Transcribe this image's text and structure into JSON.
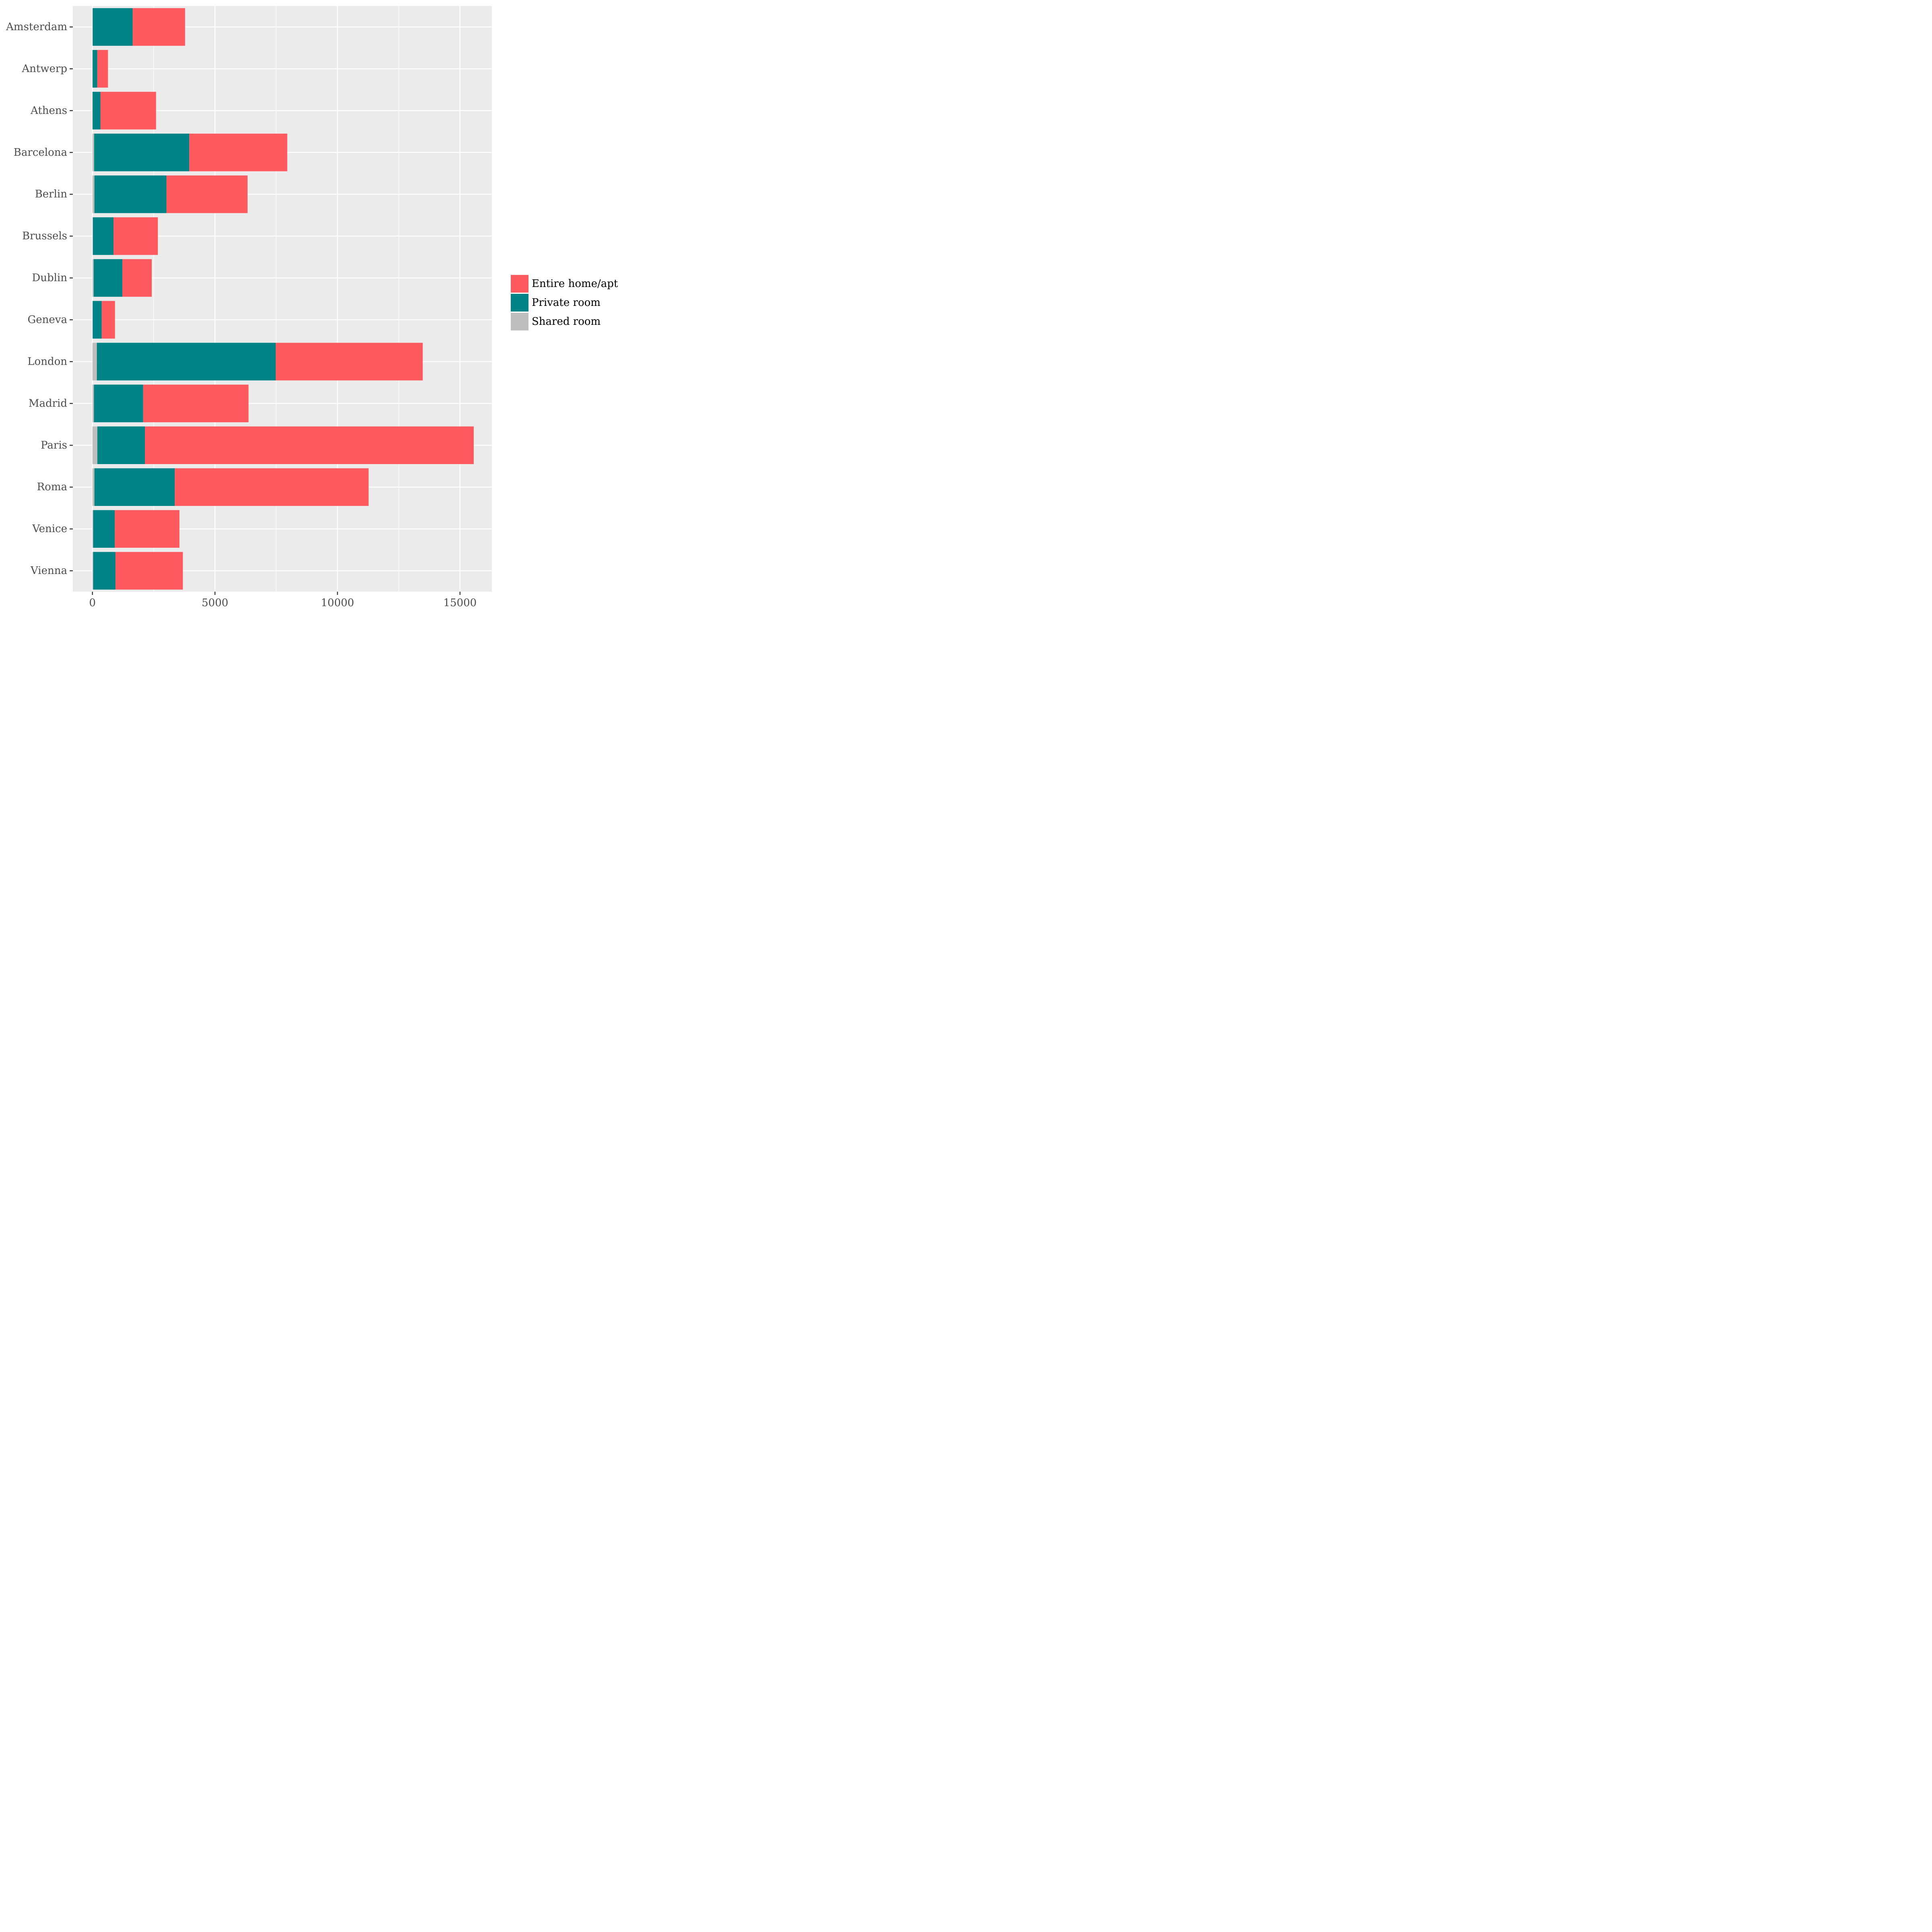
{
  "chart_data": {
    "type": "bar",
    "orientation": "horizontal",
    "stacked": true,
    "categories": [
      "Amsterdam",
      "Antwerp",
      "Athens",
      "Barcelona",
      "Berlin",
      "Brussels",
      "Dublin",
      "Geneva",
      "London",
      "Madrid",
      "Paris",
      "Roma",
      "Venice",
      "Vienna"
    ],
    "series": [
      {
        "name": "Shared room",
        "color": "#bebebe",
        "values": [
          10,
          5,
          5,
          70,
          80,
          20,
          50,
          10,
          180,
          60,
          200,
          80,
          30,
          30
        ]
      },
      {
        "name": "Private room",
        "color": "#008387",
        "values": [
          1630,
          190,
          320,
          3880,
          2940,
          840,
          1170,
          370,
          7300,
          2010,
          1940,
          3280,
          880,
          910
        ]
      },
      {
        "name": "Entire home/apt",
        "color": "#ff5a5f",
        "values": [
          2140,
          440,
          2270,
          4000,
          3310,
          1810,
          1200,
          540,
          6000,
          4300,
          13420,
          7910,
          2640,
          2750
        ]
      }
    ],
    "legend_order": [
      "Entire home/apt",
      "Private room",
      "Shared room"
    ],
    "xticks": [
      0,
      5000,
      10000,
      15000
    ],
    "xlim": [
      -800,
      16300
    ],
    "title": "",
    "xlabel": "",
    "ylabel": "",
    "grid": true,
    "legend_position": "right"
  }
}
